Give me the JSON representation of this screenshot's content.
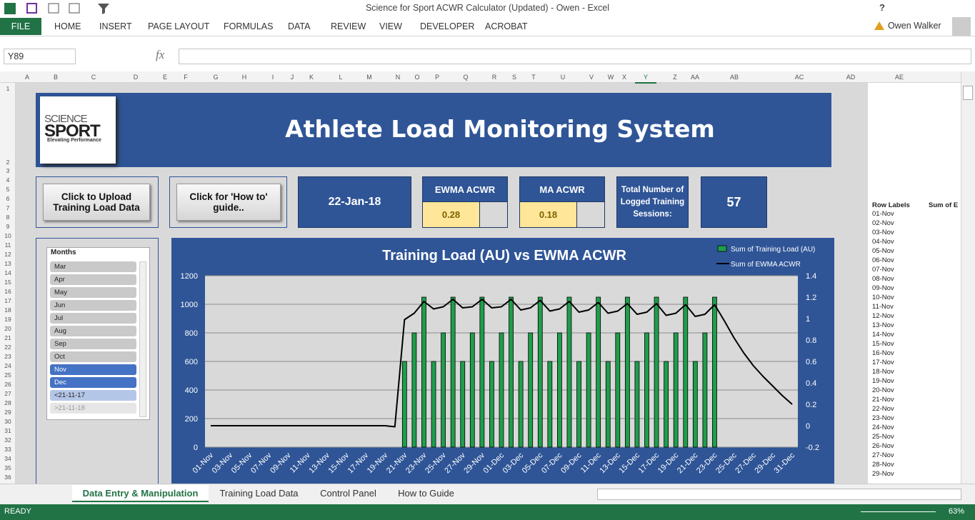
{
  "window": {
    "title": "Science for Sport ACWR Calculator (Updated) - Owen - Excel",
    "help": "?",
    "user": "Owen Walker"
  },
  "ribbon": {
    "tabs": [
      "FILE",
      "HOME",
      "INSERT",
      "PAGE LAYOUT",
      "FORMULAS",
      "DATA",
      "REVIEW",
      "VIEW",
      "DEVELOPER",
      "ACROBAT"
    ]
  },
  "formula_bar": {
    "name_box": "Y89",
    "fx": "fx"
  },
  "columns": [
    "A",
    "B",
    "C",
    "D",
    "E",
    "F",
    "G",
    "H",
    "I",
    "J",
    "K",
    "L",
    "M",
    "N",
    "O",
    "P",
    "Q",
    "R",
    "S",
    "T",
    "U",
    "V",
    "W",
    "X",
    "Y",
    "Z",
    "AA",
    "AB",
    "AC",
    "AD",
    "AE"
  ],
  "rows": [
    1,
    2,
    3,
    4,
    5,
    6,
    7,
    8,
    9,
    10,
    11,
    12,
    13,
    14,
    15,
    16,
    17,
    18,
    19,
    20,
    21,
    22,
    23,
    24,
    25,
    26,
    27,
    28,
    29,
    30,
    31,
    32,
    33,
    34,
    35,
    36
  ],
  "dashboard": {
    "banner_title": "Athlete Load Monitoring System",
    "logo": {
      "line1": "SCIENCE",
      "line2": "SPORT",
      "tagline": "Elevating Performance"
    },
    "buttons": [
      "Click to Upload Training Load Data",
      "Click for 'How to' guide.."
    ],
    "date": "22-Jan-18",
    "ewma": {
      "label": "EWMA ACWR",
      "value": 0.28
    },
    "ma": {
      "label": "MA ACWR",
      "value": 0.18
    },
    "sessions": {
      "label": "Total Number of Logged Training Sessions:",
      "value": 57
    }
  },
  "slicer": {
    "title": "Months",
    "items": [
      {
        "label": "Mar",
        "selected": false
      },
      {
        "label": "Apr",
        "selected": false
      },
      {
        "label": "May",
        "selected": false
      },
      {
        "label": "Jun",
        "selected": false
      },
      {
        "label": "Jul",
        "selected": false
      },
      {
        "label": "Aug",
        "selected": false
      },
      {
        "label": "Sep",
        "selected": false
      },
      {
        "label": "Oct",
        "selected": false
      },
      {
        "label": "Nov",
        "selected": true
      },
      {
        "label": "Dec",
        "selected": true
      },
      {
        "label": "<21-11-17",
        "selected": false
      },
      {
        "label": ">21-11-18",
        "selected": false
      }
    ]
  },
  "pivot": {
    "headers": [
      "Row Labels",
      "Sum of E"
    ],
    "rows": [
      "01-Nov",
      "02-Nov",
      "03-Nov",
      "04-Nov",
      "05-Nov",
      "06-Nov",
      "07-Nov",
      "08-Nov",
      "09-Nov",
      "10-Nov",
      "11-Nov",
      "12-Nov",
      "13-Nov",
      "14-Nov",
      "15-Nov",
      "16-Nov",
      "17-Nov",
      "18-Nov",
      "19-Nov",
      "20-Nov",
      "21-Nov",
      "22-Nov",
      "23-Nov",
      "24-Nov",
      "25-Nov",
      "26-Nov",
      "27-Nov",
      "28-Nov",
      "29-Nov"
    ]
  },
  "sheet_tabs": [
    {
      "label": "Data Entry & Manipulation",
      "active": true
    },
    {
      "label": "Training Load Data",
      "active": false
    },
    {
      "label": "Control Panel",
      "active": false
    },
    {
      "label": "How to Guide",
      "active": false
    }
  ],
  "status": {
    "state": "READY",
    "zoom": "63%"
  },
  "chart_data": {
    "type": "bar-line",
    "title": "Training Load (AU) vs EWMA ACWR",
    "legend": "top-right",
    "grid": true,
    "categories": [
      "01-Nov",
      null,
      "03-Nov",
      null,
      "05-Nov",
      null,
      "07-Nov",
      null,
      "09-Nov",
      null,
      "11-Nov",
      null,
      "13-Nov",
      null,
      "15-Nov",
      null,
      "17-Nov",
      null,
      "19-Nov",
      null,
      "21-Nov",
      null,
      "23-Nov",
      null,
      "25-Nov",
      null,
      "27-Nov",
      null,
      "29-Nov",
      null,
      "01-Dec",
      null,
      "03-Dec",
      null,
      "05-Dec",
      null,
      "07-Dec",
      null,
      "09-Dec",
      null,
      "11-Dec",
      null,
      "13-Dec",
      null,
      "15-Dec",
      null,
      "17-Dec",
      null,
      "19-Dec",
      null,
      "21-Dec",
      null,
      "23-Dec",
      null,
      "25-Dec",
      null,
      "27-Dec",
      null,
      "29-Dec",
      null,
      "31-Dec"
    ],
    "ylim": [
      0,
      1200
    ],
    "yticks": [
      0,
      200,
      400,
      600,
      800,
      1000,
      1200
    ],
    "y2lim": [
      -0.2,
      1.4
    ],
    "y2ticks": [
      -0.2,
      0,
      0.2,
      0.4,
      0.6,
      0.8,
      1,
      1.2,
      1.4
    ],
    "series": [
      {
        "name": "Sum of Training Load (AU)",
        "type": "bar",
        "color": "#1f9e4b",
        "values": [
          null,
          null,
          null,
          null,
          null,
          null,
          null,
          null,
          null,
          null,
          null,
          null,
          null,
          null,
          null,
          null,
          null,
          null,
          null,
          null,
          600,
          800,
          1050,
          600,
          800,
          1050,
          600,
          800,
          1050,
          600,
          800,
          1050,
          600,
          800,
          1050,
          600,
          800,
          1050,
          600,
          800,
          1050,
          600,
          800,
          1050,
          600,
          800,
          1050,
          600,
          800,
          1050,
          600,
          800,
          1050,
          null,
          null,
          null,
          null,
          null,
          null,
          null,
          null
        ]
      },
      {
        "name": "Sum of EWMA ACWR",
        "type": "line",
        "axis": "y2",
        "color": "#000000",
        "values": [
          0,
          0,
          0,
          0,
          0,
          0,
          0,
          0,
          0,
          0,
          0,
          0,
          0,
          0,
          0,
          0,
          0,
          0,
          0,
          -0.01,
          0.99,
          1.05,
          1.16,
          1.09,
          1.11,
          1.18,
          1.1,
          1.11,
          1.18,
          1.1,
          1.11,
          1.18,
          1.08,
          1.1,
          1.17,
          1.07,
          1.09,
          1.16,
          1.06,
          1.08,
          1.15,
          1.05,
          1.07,
          1.14,
          1.04,
          1.06,
          1.14,
          1.03,
          1.05,
          1.13,
          1.02,
          1.04,
          1.13,
          0.98,
          0.82,
          0.68,
          0.56,
          0.46,
          0.37,
          0.28,
          0.2
        ]
      }
    ]
  }
}
